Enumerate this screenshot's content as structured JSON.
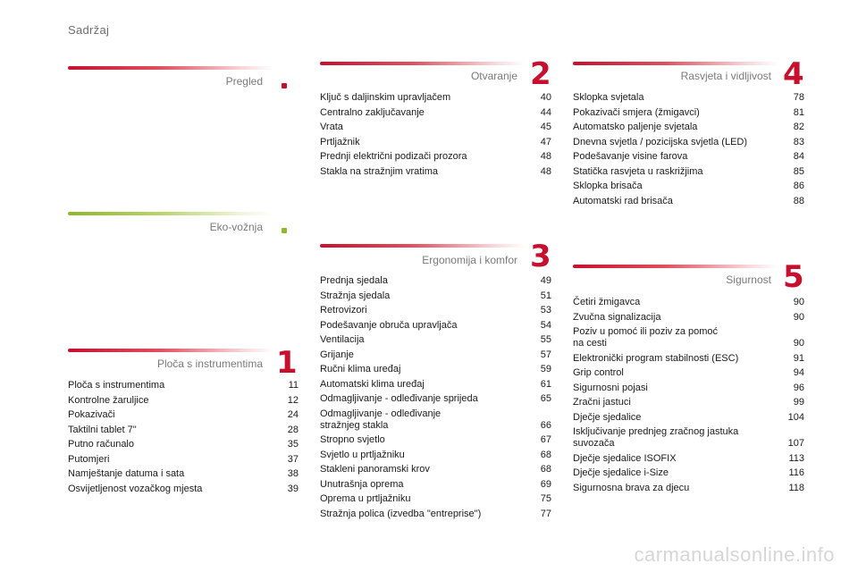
{
  "page_title": "Sadržaj",
  "colors": {
    "red": "#c8102e",
    "green": "#8fb82a"
  },
  "sections": {
    "pregled": {
      "title": "Pregled",
      "marker": "."
    },
    "eko": {
      "title": "Eko-vožnja",
      "marker": "."
    },
    "s1": {
      "title": "Ploča s instrumentima",
      "number": "1",
      "items": [
        {
          "label": "Ploča s instrumentima",
          "page": "11"
        },
        {
          "label": "Kontrolne žaruljice",
          "page": "12"
        },
        {
          "label": "Pokazivači",
          "page": "24"
        },
        {
          "label": "Taktilni tablet 7\"",
          "page": "28"
        },
        {
          "label": "Putno računalo",
          "page": "35"
        },
        {
          "label": "Putomjeri",
          "page": "37"
        },
        {
          "label": "Namještanje datuma i sata",
          "page": "38"
        },
        {
          "label": "Osvijetljenost vozačkog mjesta",
          "page": "39"
        }
      ]
    },
    "s2": {
      "title": "Otvaranje",
      "number": "2",
      "items": [
        {
          "label": "Ključ s daljinskim upravljačem",
          "page": "40"
        },
        {
          "label": "Centralno zaključavanje",
          "page": "44"
        },
        {
          "label": "Vrata",
          "page": "45"
        },
        {
          "label": "Prtljažnik",
          "page": "47"
        },
        {
          "label": "Prednji električni podizači prozora",
          "page": "48"
        },
        {
          "label": "Stakla na stražnjim vratima",
          "page": "48"
        }
      ]
    },
    "s3": {
      "title": "Ergonomija i komfor",
      "number": "3",
      "items": [
        {
          "label": "Prednja sjedala",
          "page": "49"
        },
        {
          "label": "Stražnja sjedala",
          "page": "51"
        },
        {
          "label": "Retrovizori",
          "page": "53"
        },
        {
          "label": "Podešavanje obruča upravljača",
          "page": "54"
        },
        {
          "label": "Ventilacija",
          "page": "55"
        },
        {
          "label": "Grijanje",
          "page": "57"
        },
        {
          "label": "Ručni klima uređaj",
          "page": "59"
        },
        {
          "label": "Automatski klima uređaj",
          "page": "61"
        },
        {
          "label": "Odmagljivanje - odleđivanje sprijeda",
          "page": "65"
        },
        {
          "label": "Odmagljivanje - odleđivanje\n    stražnjeg stakla",
          "page": "66"
        },
        {
          "label": "Stropno svjetlo",
          "page": "67"
        },
        {
          "label": "Svjetlo u prtljažniku",
          "page": "68"
        },
        {
          "label": "Stakleni panoramski krov",
          "page": "68"
        },
        {
          "label": "Unutrašnja oprema",
          "page": "69"
        },
        {
          "label": "Oprema u prtljažniku",
          "page": "75"
        },
        {
          "label": "Stražnja polica (izvedba \"entreprise\")",
          "page": "77"
        }
      ]
    },
    "s4": {
      "title": "Rasvjeta i vidljivost",
      "number": "4",
      "items": [
        {
          "label": "Sklopka svjetala",
          "page": "78"
        },
        {
          "label": "Pokazivači smjera (žmigavci)",
          "page": "81"
        },
        {
          "label": "Automatsko paljenje svjetala",
          "page": "82"
        },
        {
          "label": "Dnevna svjetla / pozicijska svjetla (LED)",
          "page": "83"
        },
        {
          "label": "Podešavanje visine farova",
          "page": "84"
        },
        {
          "label": "Statička rasvjeta u raskrižjima",
          "page": "85"
        },
        {
          "label": "Sklopka brisača",
          "page": "86"
        },
        {
          "label": "Automatski rad brisača",
          "page": "88"
        }
      ]
    },
    "s5": {
      "title": "Sigurnost",
      "number": "5",
      "items": [
        {
          "label": "Četiri žmigavca",
          "page": "90"
        },
        {
          "label": "Zvučna signalizacija",
          "page": "90"
        },
        {
          "label": "Poziv u pomoć ili poziv za pomoć\n    na cesti",
          "page": "90"
        },
        {
          "label": "Elektronički program stabilnosti (ESC)",
          "page": "91"
        },
        {
          "label": "Grip control",
          "page": "94"
        },
        {
          "label": "Sigurnosni pojasi",
          "page": "96"
        },
        {
          "label": "Zračni jastuci",
          "page": "99"
        },
        {
          "label": "Dječje sjedalice",
          "page": "104"
        },
        {
          "label": "Isključivanje prednjeg zračnog jastuka\n    suvozača",
          "page": "107"
        },
        {
          "label": "Dječje sjedalice ISOFIX",
          "page": "113"
        },
        {
          "label": "Dječje sjedalice i-Size",
          "page": "116"
        },
        {
          "label": "Sigurnosna brava za djecu",
          "page": "118"
        }
      ]
    }
  },
  "watermark": "carmanualsonline.info"
}
